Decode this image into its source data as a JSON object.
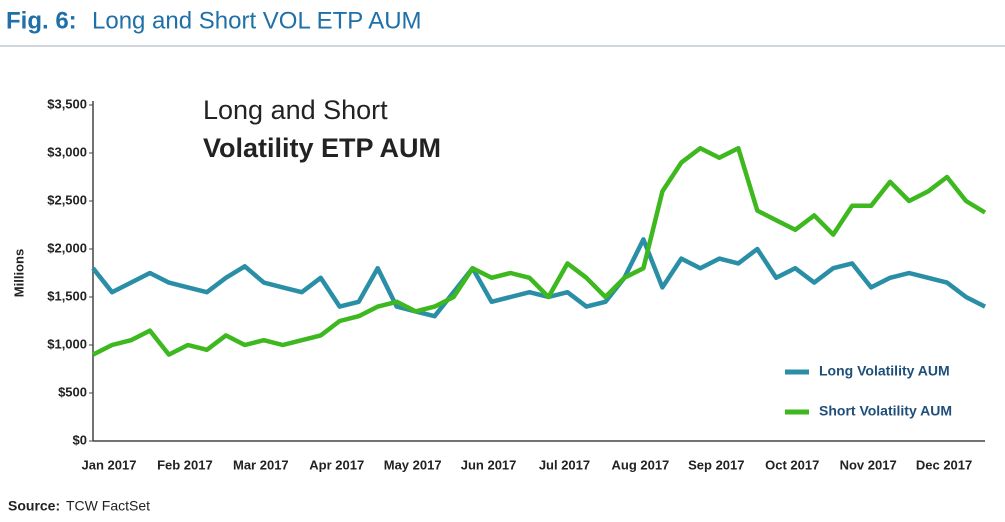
{
  "chart_data": {
    "type": "line",
    "figure_label": "Fig. 6:",
    "title": "Long and Short VOL ETP AUM",
    "inner_title": [
      "Long and Short",
      "Volatility ETP AUM"
    ],
    "ylabel": "Millions",
    "source_label": "Source:",
    "source": "TCW FactSet",
    "categories": [
      "Jan 2017",
      null,
      null,
      null,
      "Feb 2017",
      null,
      null,
      null,
      "Mar 2017",
      null,
      null,
      null,
      "Apr 2017",
      null,
      null,
      null,
      "May 2017",
      null,
      null,
      null,
      "Jun 2017",
      null,
      null,
      null,
      "Jul 2017",
      null,
      null,
      null,
      "Aug 2017",
      null,
      null,
      null,
      "Sep 2017",
      null,
      null,
      null,
      "Oct 2017",
      null,
      null,
      null,
      "Nov 2017",
      null,
      null,
      null,
      "Dec 2017",
      null,
      null,
      null
    ],
    "series": [
      {
        "name": "Long Volatility AUM",
        "color": "#2a8fa6",
        "values": [
          1800,
          1550,
          1650,
          1750,
          1650,
          1600,
          1550,
          1700,
          1820,
          1650,
          1600,
          1550,
          1700,
          1400,
          1450,
          1800,
          1400,
          1350,
          1300,
          1550,
          1800,
          1450,
          1500,
          1550,
          1500,
          1550,
          1400,
          1450,
          1700,
          2100,
          1600,
          1900,
          1800,
          1900,
          1850,
          2000,
          1700,
          1800,
          1650,
          1800,
          1850,
          1600,
          1700,
          1750,
          1700,
          1650,
          1500,
          1400
        ]
      },
      {
        "name": "Short Volatility AUM",
        "color": "#3db81f",
        "values": [
          900,
          1000,
          1050,
          1150,
          900,
          1000,
          950,
          1100,
          1000,
          1050,
          1000,
          1050,
          1100,
          1250,
          1300,
          1400,
          1450,
          1350,
          1400,
          1500,
          1800,
          1700,
          1750,
          1700,
          1500,
          1850,
          1700,
          1500,
          1700,
          1800,
          2600,
          2900,
          3050,
          2950,
          3050,
          2400,
          2300,
          2200,
          2350,
          2150,
          2450,
          2450,
          2700,
          2500,
          2600,
          2750,
          2500,
          2380
        ]
      }
    ],
    "ylim": [
      0,
      3500
    ],
    "yticks": [
      {
        "value": 0,
        "label": "$0"
      },
      {
        "value": 500,
        "label": "$500"
      },
      {
        "value": 1000,
        "label": "$1,000"
      },
      {
        "value": 1500,
        "label": "$1,500"
      },
      {
        "value": 2000,
        "label": "$2,000"
      },
      {
        "value": 2500,
        "label": "$2,500"
      },
      {
        "value": 3000,
        "label": "$3,000"
      },
      {
        "value": 3500,
        "label": "$3,500"
      }
    ],
    "grid": false,
    "legend": "lower right"
  }
}
